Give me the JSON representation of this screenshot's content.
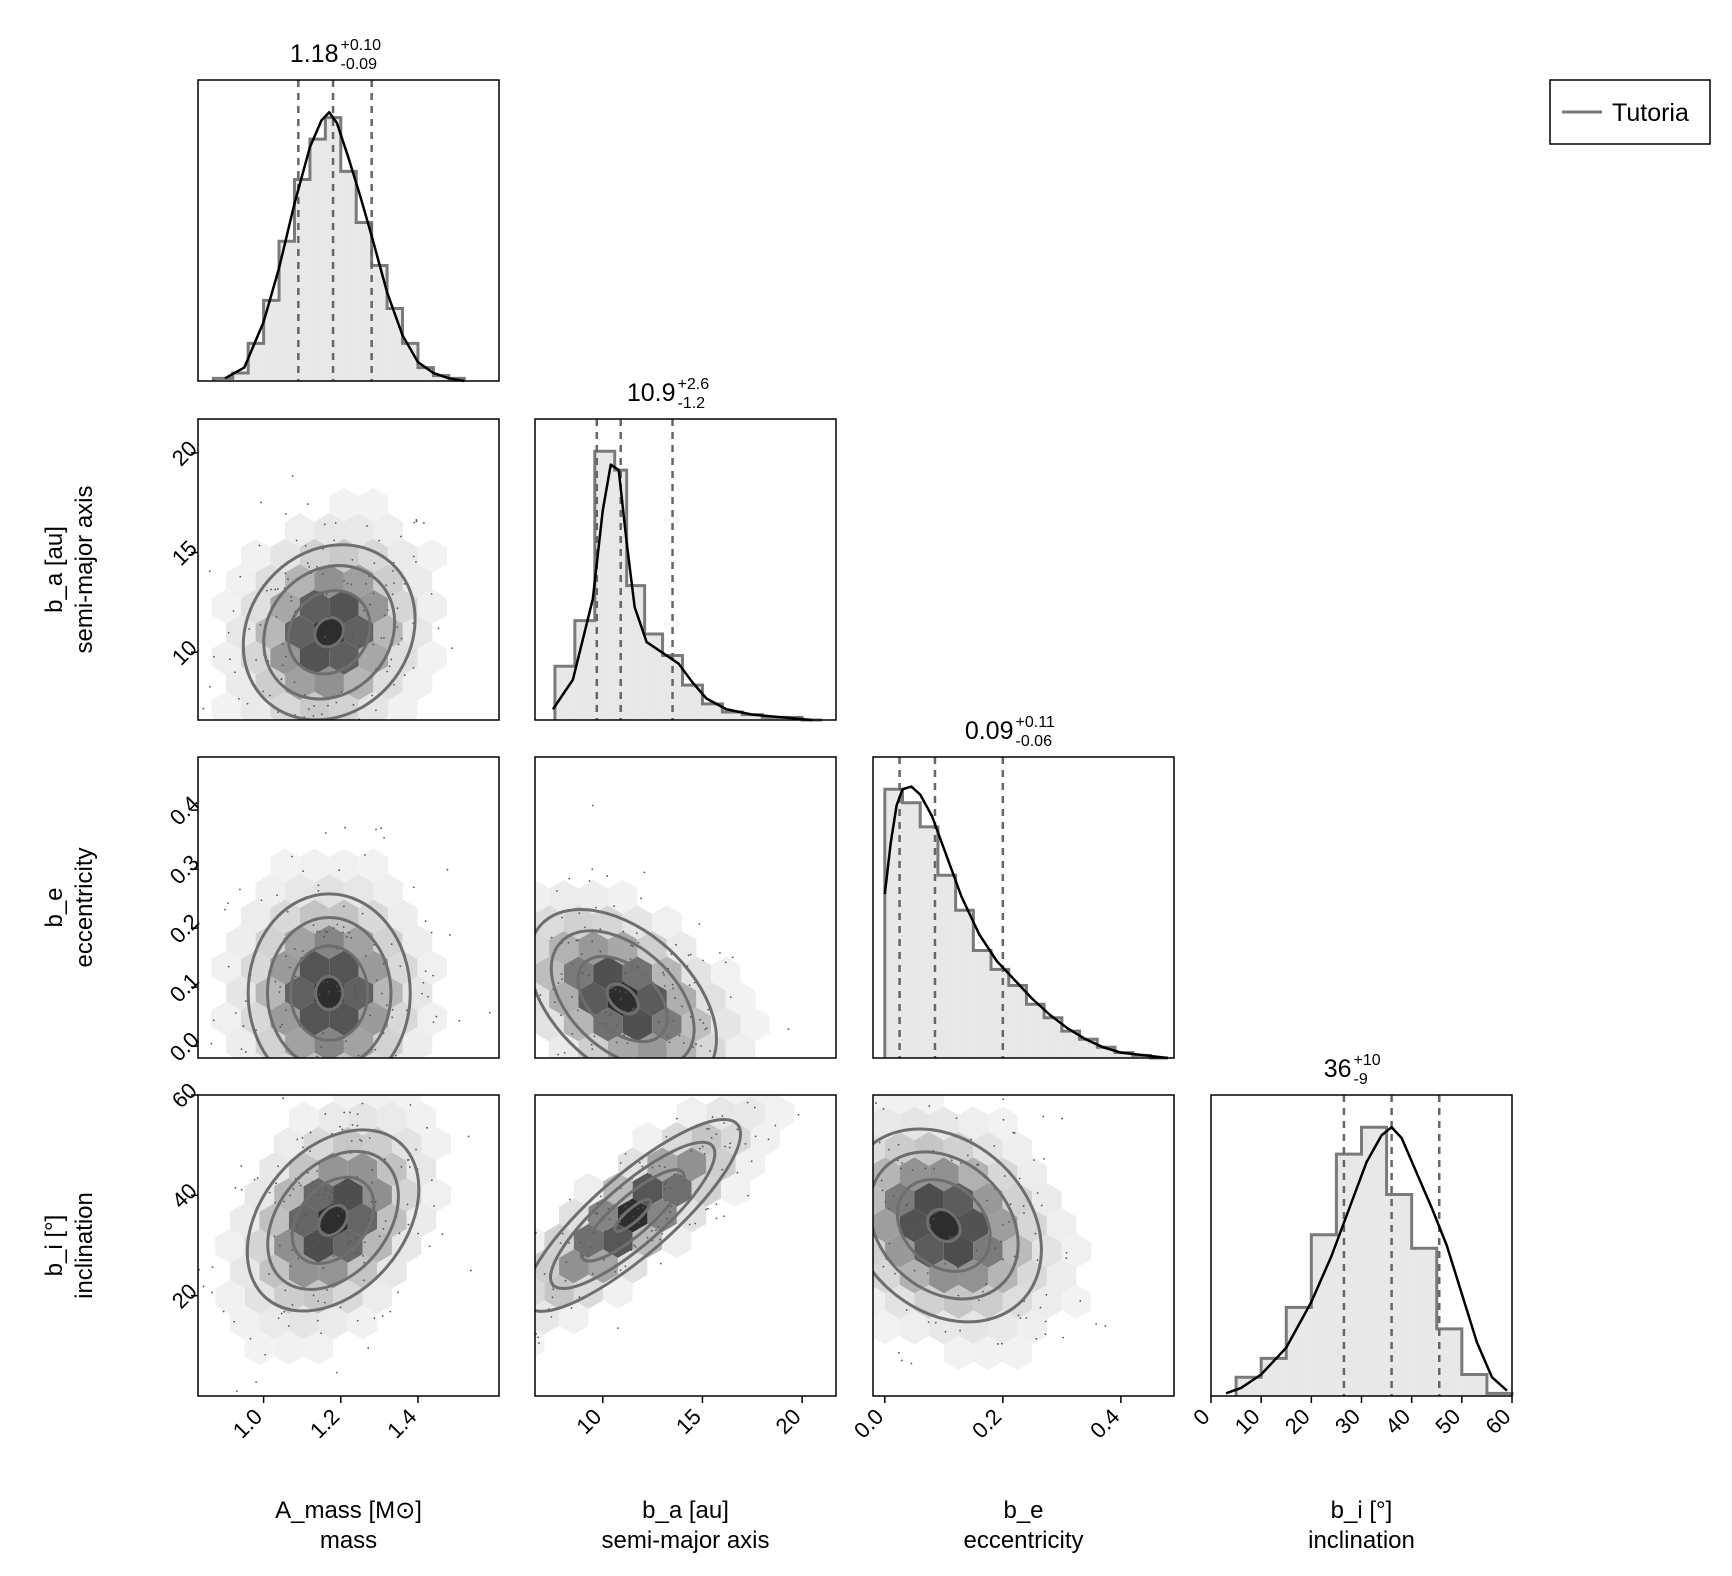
{
  "chart_data": {
    "type": "corner",
    "legend": {
      "label": "Tutoria",
      "placement": "top-right"
    },
    "params": [
      {
        "key": "mass",
        "label": "A_mass [M⊙]",
        "sublabel": "mass",
        "range": [
          0.83,
          1.61
        ],
        "ticks": [
          1.0,
          1.2,
          1.4
        ],
        "tick_labels": [
          "1.0",
          "1.2",
          "1.4"
        ],
        "title": {
          "median": "1.18",
          "plus": "+0.10",
          "minus": "-0.09"
        },
        "quantiles": [
          1.09,
          1.18,
          1.28
        ],
        "hist": {
          "edges": [
            0.87,
            0.92,
            0.96,
            1.0,
            1.04,
            1.08,
            1.12,
            1.16,
            1.2,
            1.24,
            1.28,
            1.32,
            1.36,
            1.4,
            1.44,
            1.48,
            1.52
          ],
          "counts": [
            0.01,
            0.03,
            0.14,
            0.3,
            0.52,
            0.75,
            0.9,
            0.98,
            0.78,
            0.59,
            0.43,
            0.27,
            0.14,
            0.05,
            0.02,
            0.01
          ]
        },
        "kde": {
          "x": [
            0.9,
            0.95,
            1.0,
            1.04,
            1.08,
            1.12,
            1.15,
            1.17,
            1.19,
            1.22,
            1.25,
            1.28,
            1.32,
            1.36,
            1.4,
            1.44,
            1.48,
            1.52
          ],
          "y": [
            0.01,
            0.05,
            0.22,
            0.42,
            0.66,
            0.87,
            0.97,
            1.0,
            0.96,
            0.83,
            0.69,
            0.54,
            0.33,
            0.17,
            0.07,
            0.03,
            0.01,
            0.0
          ]
        }
      },
      {
        "key": "a",
        "label": "b_a [au]",
        "sublabel": "semi-major axis",
        "range": [
          6.6,
          21.7
        ],
        "ticks": [
          10,
          15,
          20
        ],
        "tick_labels": [
          "10",
          "15",
          "20"
        ],
        "title": {
          "median": "10.9",
          "plus": "+2.6",
          "minus": "-1.2"
        },
        "quantiles": [
          9.7,
          10.9,
          13.5
        ],
        "hist": {
          "edges": [
            7.6,
            8.6,
            9.6,
            10.6,
            11.2,
            12.1,
            13.0,
            14.0,
            15.0,
            16.0,
            17.0,
            18.0,
            19.0,
            20.0,
            21.0
          ],
          "counts": [
            0.2,
            0.37,
            1.0,
            0.93,
            0.5,
            0.32,
            0.24,
            0.13,
            0.06,
            0.03,
            0.02,
            0.01,
            0.01,
            0.0
          ]
        },
        "kde": {
          "x": [
            7.5,
            8.5,
            9.5,
            10.0,
            10.4,
            10.8,
            11.2,
            11.6,
            12.2,
            13.0,
            13.8,
            14.5,
            15.2,
            16.2,
            17.5,
            19.0,
            20.5
          ],
          "y": [
            0.04,
            0.15,
            0.45,
            0.78,
            0.95,
            0.93,
            0.66,
            0.42,
            0.29,
            0.25,
            0.21,
            0.14,
            0.08,
            0.04,
            0.02,
            0.01,
            0.0
          ]
        }
      },
      {
        "key": "e",
        "label": "b_e",
        "sublabel": "eccentricity",
        "range": [
          -0.02,
          0.49
        ],
        "ticks": [
          0.0,
          0.2,
          0.4
        ],
        "tick_labels": [
          "0.0",
          "0.2",
          "0.4"
        ],
        "tick_labels_row": [
          "0.0",
          "0.1",
          "0.2",
          "0.3",
          "0.4"
        ],
        "ticks_row": [
          0.0,
          0.1,
          0.2,
          0.3,
          0.4
        ],
        "title": {
          "median": "0.09",
          "plus": "+0.11",
          "minus": "-0.06"
        },
        "quantiles": [
          0.025,
          0.085,
          0.2
        ],
        "hist": {
          "edges": [
            0.0,
            0.03,
            0.06,
            0.09,
            0.12,
            0.15,
            0.18,
            0.21,
            0.24,
            0.27,
            0.3,
            0.33,
            0.36,
            0.39,
            0.42,
            0.45,
            0.48
          ],
          "counts": [
            1.0,
            0.95,
            0.86,
            0.68,
            0.55,
            0.4,
            0.33,
            0.27,
            0.2,
            0.15,
            0.1,
            0.07,
            0.04,
            0.02,
            0.01,
            0.0
          ]
        },
        "kde": {
          "x": [
            0.0,
            0.01,
            0.02,
            0.03,
            0.045,
            0.06,
            0.08,
            0.1,
            0.13,
            0.16,
            0.19,
            0.22,
            0.25,
            0.28,
            0.31,
            0.34,
            0.37,
            0.4,
            0.44,
            0.48
          ],
          "y": [
            0.61,
            0.8,
            0.94,
            1.0,
            1.01,
            0.98,
            0.9,
            0.78,
            0.6,
            0.46,
            0.36,
            0.29,
            0.22,
            0.16,
            0.11,
            0.07,
            0.04,
            0.02,
            0.01,
            0.0
          ]
        }
      },
      {
        "key": "i",
        "label": "b_i [°]",
        "sublabel": "inclination",
        "range": [
          0,
          60
        ],
        "ticks": [
          0,
          10,
          20,
          30,
          40,
          50,
          60
        ],
        "tick_labels": [
          "0",
          "10",
          "20",
          "30",
          "40",
          "50",
          "60"
        ],
        "ticks_row": [
          20,
          40,
          60
        ],
        "tick_labels_row": [
          "20",
          "40",
          "60"
        ],
        "title": {
          "median": "36",
          "plus": "+10",
          "minus": "-9"
        },
        "quantiles": [
          26.5,
          36,
          45.5
        ],
        "hist": {
          "edges": [
            5,
            10,
            15,
            20,
            25,
            30,
            35,
            40,
            45,
            50,
            55,
            60
          ],
          "counts": [
            0.07,
            0.14,
            0.33,
            0.6,
            0.9,
            1.0,
            0.75,
            0.55,
            0.25,
            0.08,
            0.01
          ]
        },
        "kde": {
          "x": [
            3,
            6,
            10,
            15,
            20,
            24,
            28,
            31,
            34,
            36,
            38,
            41,
            44,
            47,
            50,
            53,
            56,
            59
          ],
          "y": [
            0.01,
            0.03,
            0.08,
            0.18,
            0.35,
            0.52,
            0.72,
            0.87,
            0.97,
            1.0,
            0.96,
            0.83,
            0.7,
            0.56,
            0.38,
            0.2,
            0.07,
            0.02
          ]
        }
      }
    ],
    "pairs": [
      {
        "x": "mass",
        "y": "a",
        "mean": [
          1.17,
          11.0
        ],
        "sd": [
          0.1,
          2.2
        ],
        "rho": 0.15
      },
      {
        "x": "mass",
        "y": "e",
        "mean": [
          1.17,
          0.09
        ],
        "sd": [
          0.1,
          0.08
        ],
        "rho": 0.0
      },
      {
        "x": "a",
        "y": "e",
        "mean": [
          11.0,
          0.08
        ],
        "sd": [
          2.3,
          0.07
        ],
        "rho": -0.45
      },
      {
        "x": "mass",
        "y": "i",
        "mean": [
          1.18,
          35
        ],
        "sd": [
          0.1,
          9
        ],
        "rho": 0.35
      },
      {
        "x": "a",
        "y": "i",
        "mean": [
          11.5,
          36
        ],
        "sd": [
          2.6,
          9
        ],
        "rho": 0.85
      },
      {
        "x": "e",
        "y": "i",
        "mean": [
          0.1,
          34
        ],
        "sd": [
          0.08,
          9
        ],
        "rho": -0.25
      }
    ]
  }
}
